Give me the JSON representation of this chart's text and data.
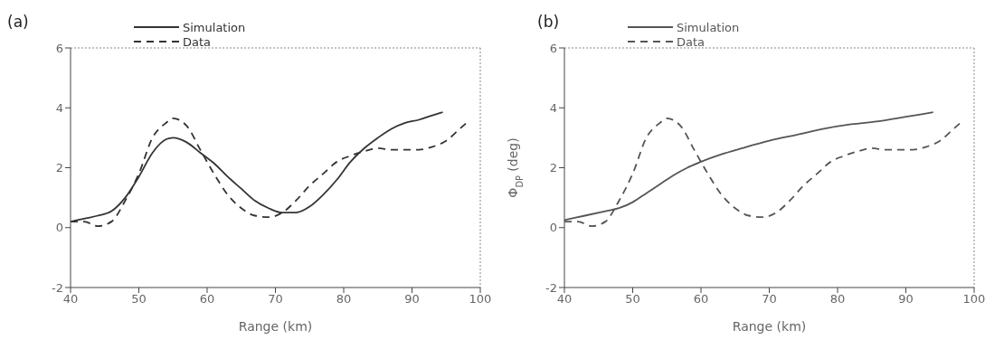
{
  "chart_data": [
    {
      "type": "line",
      "title": "(a)",
      "xlabel": "Range (km)",
      "xlim": [
        40,
        100
      ],
      "xticks": [
        40,
        50,
        60,
        70,
        80,
        90,
        100
      ],
      "ylim": [
        -2,
        6
      ],
      "yticks": [
        -2,
        0,
        2,
        4,
        6
      ],
      "grid": false,
      "legend": "top",
      "marker": "none",
      "series": [
        {
          "name": "Simulation",
          "color": "#333333",
          "line_style": "solid",
          "x": [
            40,
            42,
            44,
            46,
            48,
            50,
            52,
            54,
            55,
            57,
            59,
            61,
            63,
            65,
            67,
            69,
            71,
            73,
            75,
            77,
            79,
            81,
            83,
            85,
            87,
            89,
            91,
            93,
            94.5
          ],
          "values": [
            0.2,
            0.3,
            0.4,
            0.55,
            1.0,
            1.7,
            2.5,
            2.95,
            3.0,
            2.85,
            2.5,
            2.15,
            1.7,
            1.3,
            0.9,
            0.65,
            0.5,
            0.5,
            0.7,
            1.1,
            1.6,
            2.2,
            2.65,
            3.0,
            3.3,
            3.5,
            3.6,
            3.75,
            3.85
          ]
        },
        {
          "name": "Data",
          "color": "#333333",
          "line_style": "dashed",
          "x": [
            40,
            42,
            44,
            46,
            48,
            50,
            52,
            54,
            55,
            57,
            59,
            61,
            63,
            65,
            67,
            69,
            71,
            73,
            75,
            77,
            79,
            81,
            83,
            85,
            87,
            89,
            91,
            93,
            95,
            97,
            98
          ],
          "values": [
            0.2,
            0.2,
            0.05,
            0.2,
            0.9,
            1.8,
            3.0,
            3.5,
            3.65,
            3.4,
            2.6,
            1.8,
            1.1,
            0.65,
            0.4,
            0.35,
            0.5,
            0.9,
            1.4,
            1.8,
            2.2,
            2.4,
            2.55,
            2.65,
            2.6,
            2.6,
            2.6,
            2.7,
            2.9,
            3.3,
            3.5
          ]
        }
      ]
    },
    {
      "type": "line",
      "title": "(b)",
      "xlabel": "Range (km)",
      "ylabel": "Φ$_{DP}$ (deg)",
      "xlim": [
        40,
        100
      ],
      "xticks": [
        40,
        50,
        60,
        70,
        80,
        90,
        100
      ],
      "ylim": [
        -2,
        6
      ],
      "yticks": [
        -2,
        0,
        2,
        4,
        6
      ],
      "grid": false,
      "legend": "top",
      "marker": "none",
      "series": [
        {
          "name": "Simulation",
          "color": "#555555",
          "line_style": "solid",
          "x": [
            40,
            43,
            46,
            48,
            50,
            52,
            54,
            56,
            58,
            60,
            63,
            66,
            70,
            74,
            78,
            82,
            86,
            90,
            94
          ],
          "values": [
            0.25,
            0.4,
            0.55,
            0.65,
            0.85,
            1.15,
            1.45,
            1.75,
            2.0,
            2.2,
            2.45,
            2.65,
            2.9,
            3.1,
            3.3,
            3.45,
            3.55,
            3.7,
            3.85
          ]
        },
        {
          "name": "Data",
          "color": "#555555",
          "line_style": "dashed",
          "x": [
            40,
            42,
            44,
            46,
            48,
            50,
            52,
            54,
            55,
            57,
            59,
            61,
            63,
            65,
            67,
            69,
            71,
            73,
            75,
            77,
            79,
            81,
            83,
            85,
            87,
            89,
            91,
            93,
            95,
            97,
            98
          ],
          "values": [
            0.2,
            0.2,
            0.05,
            0.2,
            0.9,
            1.8,
            3.0,
            3.5,
            3.65,
            3.4,
            2.6,
            1.8,
            1.1,
            0.65,
            0.4,
            0.35,
            0.5,
            0.9,
            1.4,
            1.8,
            2.2,
            2.4,
            2.55,
            2.65,
            2.6,
            2.6,
            2.6,
            2.7,
            2.9,
            3.3,
            3.5
          ]
        }
      ]
    }
  ]
}
